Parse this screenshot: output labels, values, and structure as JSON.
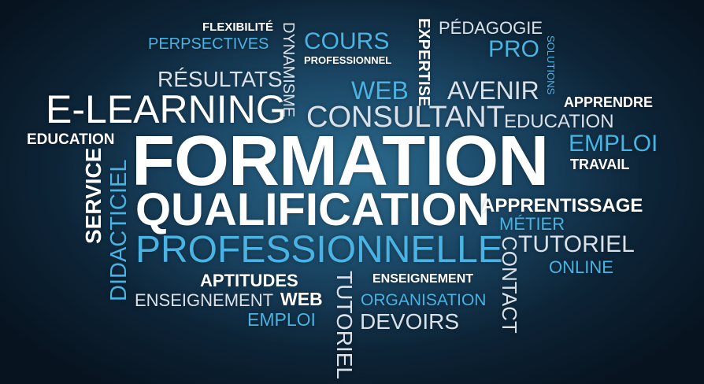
{
  "words": {
    "flexibilite": "FLEXIBILITÉ",
    "perspectives": "PERPSECTIVES",
    "dynamisme": "DYNAMISME",
    "cours": "COURS",
    "professionnel": "PROFESSIONNEL",
    "expertise": "EXPERTISE",
    "pedagogie": "PÉDAGOGIE",
    "pro": "PRO",
    "solutions": "SOLUTIONS",
    "resultats": "RÉSULTATS",
    "web_top": "WEB",
    "avenir": "AVENIR",
    "apprendre": "APPRENDRE",
    "e_learning": "E-LEARNING",
    "consultant": "CONSULTANT",
    "education_right": "EDUCATION",
    "education_left": "EDUCATION",
    "formation": "FORMATION",
    "emploi_right": "EMPLOI",
    "travail": "TRAVAIL",
    "service": "SERVICE",
    "didacticiel": "DIDACTICIEL",
    "qualification": "QUALIFICATION",
    "apprentissage": "APPRENTISSAGE",
    "metier": "MÉTIER",
    "tutoriel_right": "TUTORIEL",
    "professionnelle": "PROFESSIONNELLE",
    "online": "ONLINE",
    "contact": "CONTACT",
    "aptitudes": "APTITUDES",
    "enseignement_bold": "ENSEIGNEMENT",
    "tutoriel_vertical": "TUTORIEL",
    "enseignement_light": "ENSEIGNEMENT",
    "web_bottom": "WEB",
    "organisation": "ORGANISATION",
    "emploi_bottom": "EMPLOI",
    "devoirs": "DEVOIRS"
  },
  "colors": {
    "background_center": "#2c6c8f",
    "background_edge": "#07131f",
    "white": "#ffffff",
    "light_grey": "#d9e2ea",
    "accent_blue": "#49b3e3"
  }
}
